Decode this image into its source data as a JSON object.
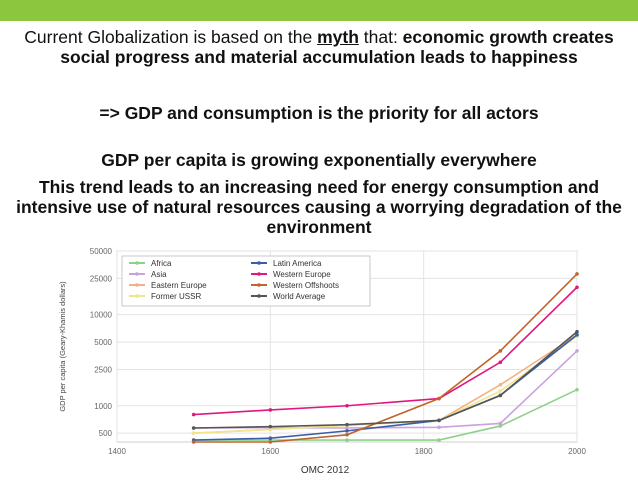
{
  "slide": {
    "intro_prefix": "Current Globalization is based on the ",
    "intro_myth": "myth",
    "intro_mid": " that: ",
    "intro_bold": "economic growth creates social progress and material accumulation leads to happiness",
    "priority_line": "=> GDP and consumption is the priority for all actors",
    "gdp_line": "GDP per capita is growing exponentially everywhere",
    "trend_line": "This trend leads to an increasing need for energy consumption and intensive use of natural resources causing a worrying degradation of the environment"
  },
  "colors": {
    "accent_bar": "#8cc63f"
  },
  "chart_data": {
    "type": "line",
    "title": "",
    "xlabel": "",
    "ylabel": "GDP per capita (Geary-Khamis dollars)",
    "source_note": "OMC 2012",
    "xlim": [
      1400,
      2000
    ],
    "ylim": [
      400,
      50000
    ],
    "y_scale": "log",
    "x_ticks": [
      "1400",
      "1600",
      "1800",
      "2000"
    ],
    "y_ticks": [
      "50000",
      "25000",
      "10000",
      "5000",
      "2500",
      "1000",
      "500"
    ],
    "y_tick_values": [
      50000,
      25000,
      10000,
      5000,
      2500,
      1000,
      500
    ],
    "legend": "top-left",
    "grid": true,
    "x": [
      1500,
      1600,
      1700,
      1820,
      1900,
      2000
    ],
    "series": [
      {
        "name": "Africa",
        "color": "#8fd18a",
        "values": [
          420,
          420,
          420,
          420,
          600,
          1500
        ]
      },
      {
        "name": "Asia",
        "color": "#c9a3dd",
        "values": [
          570,
          575,
          570,
          580,
          640,
          4000
        ]
      },
      {
        "name": "Eastern Europe",
        "color": "#f4b183",
        "values": [
          500,
          550,
          610,
          690,
          1700,
          6000
        ]
      },
      {
        "name": "Former USSR",
        "color": "#f0e68c",
        "values": [
          500,
          550,
          610,
          690,
          1450,
          5800
        ]
      },
      {
        "name": "Latin America",
        "color": "#3a5fa8",
        "values": [
          420,
          440,
          530,
          690,
          1300,
          6000
        ]
      },
      {
        "name": "Western Europe",
        "color": "#e0177f",
        "values": [
          800,
          900,
          1000,
          1200,
          3000,
          20000
        ]
      },
      {
        "name": "Western Offshoots",
        "color": "#c0642a",
        "values": [
          400,
          400,
          480,
          1200,
          4000,
          28000
        ]
      },
      {
        "name": "World Average",
        "color": "#555555",
        "values": [
          570,
          590,
          620,
          690,
          1300,
          6500
        ]
      }
    ]
  }
}
